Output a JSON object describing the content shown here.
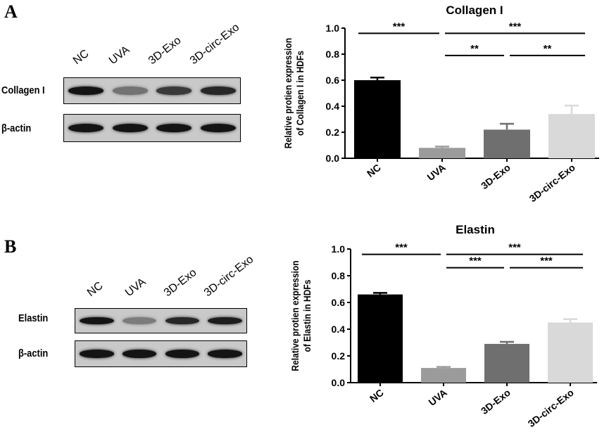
{
  "panels": [
    {
      "letter": "A",
      "blot": {
        "lanes": [
          "NC",
          "UVA",
          "3D-Exo",
          "3D-circ-Exo"
        ],
        "rows": [
          {
            "label": "Collagen I",
            "band_intensity": [
              0.95,
              0.45,
              0.75,
              0.85
            ]
          },
          {
            "label": "β-actin",
            "band_intensity": [
              0.95,
              0.95,
              0.95,
              0.95
            ]
          }
        ]
      },
      "chart_data": {
        "type": "bar",
        "title": "Collagen I",
        "ylabel": [
          "Relative protien expression",
          "of Collagen I in HDFs"
        ],
        "categories": [
          "NC",
          "UVA",
          "3D-Exo",
          "3D-circ-Exo"
        ],
        "values": [
          0.6,
          0.08,
          0.22,
          0.34
        ],
        "errors": [
          0.02,
          0.01,
          0.045,
          0.065
        ],
        "ylim": [
          0,
          1.0
        ],
        "yticks": [
          "0.0",
          "0.2",
          "0.4",
          "0.6",
          "0.8",
          "1.0"
        ],
        "colors": [
          "#000000",
          "#9b9b9b",
          "#6f6f6f",
          "#d9d9d9"
        ],
        "significance": [
          {
            "from": 0,
            "to": 1,
            "y": 0.96,
            "label": "***"
          },
          {
            "from": 1,
            "to": 3,
            "y": 0.96,
            "label": "***"
          },
          {
            "from": 1,
            "to": 2,
            "y": 0.79,
            "label": "**"
          },
          {
            "from": 2,
            "to": 3,
            "y": 0.79,
            "label": "**"
          }
        ]
      }
    },
    {
      "letter": "B",
      "blot": {
        "lanes": [
          "NC",
          "UVA",
          "3D-Exo",
          "3D-circ-Exo"
        ],
        "rows": [
          {
            "label": "Elastin",
            "band_intensity": [
              0.95,
              0.4,
              0.85,
              0.9
            ]
          },
          {
            "label": "β-actin",
            "band_intensity": [
              0.95,
              0.95,
              0.95,
              0.95
            ]
          }
        ]
      },
      "chart_data": {
        "type": "bar",
        "title": "Elastin",
        "ylabel": [
          "Relative protien expression",
          "of Elastin in HDFs"
        ],
        "categories": [
          "NC",
          "UVA",
          "3D-Exo",
          "3D-circ-Exo"
        ],
        "values": [
          0.66,
          0.11,
          0.29,
          0.45
        ],
        "errors": [
          0.012,
          0.008,
          0.015,
          0.025
        ],
        "ylim": [
          0,
          1.0
        ],
        "yticks": [
          "0.0",
          "0.2",
          "0.4",
          "0.6",
          "0.8",
          "1.0"
        ],
        "colors": [
          "#000000",
          "#9b9b9b",
          "#6f6f6f",
          "#d9d9d9"
        ],
        "significance": [
          {
            "from": 0,
            "to": 1,
            "y": 0.96,
            "label": "***"
          },
          {
            "from": 1,
            "to": 3,
            "y": 0.96,
            "label": "***"
          },
          {
            "from": 1,
            "to": 2,
            "y": 0.86,
            "label": "***"
          },
          {
            "from": 2,
            "to": 3,
            "y": 0.86,
            "label": "***"
          }
        ]
      }
    }
  ]
}
